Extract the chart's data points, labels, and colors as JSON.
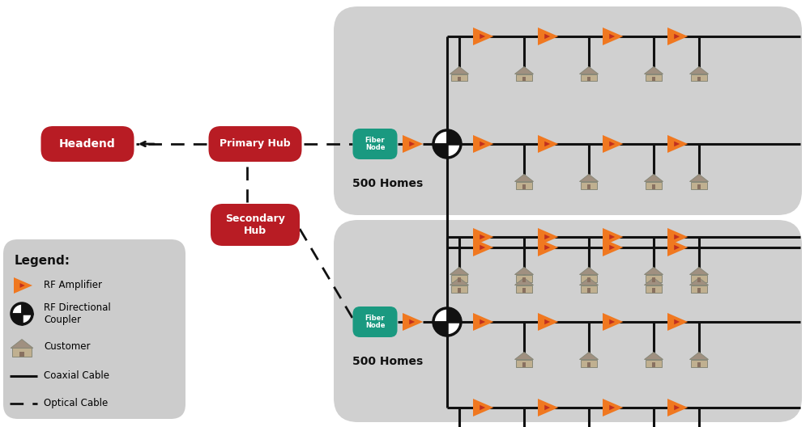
{
  "bg_color": "#ffffff",
  "legend_bg": "#cccccc",
  "hfc_area_color": "#d0d0d0",
  "headend_color": "#b81c24",
  "fiber_node_color": "#1a9980",
  "amplifier_color": "#f07820",
  "amplifier_accent": "#c03020",
  "cable_color": "#111111",
  "text_white": "#ffffff",
  "text_black": "#111111",
  "headend_label": "Headend",
  "primary_hub_label": "Primary Hub",
  "secondary_hub_label": "Secondary\nHub",
  "fiber_node_label": "Fiber\nNode",
  "homes_label": "500 Homes"
}
